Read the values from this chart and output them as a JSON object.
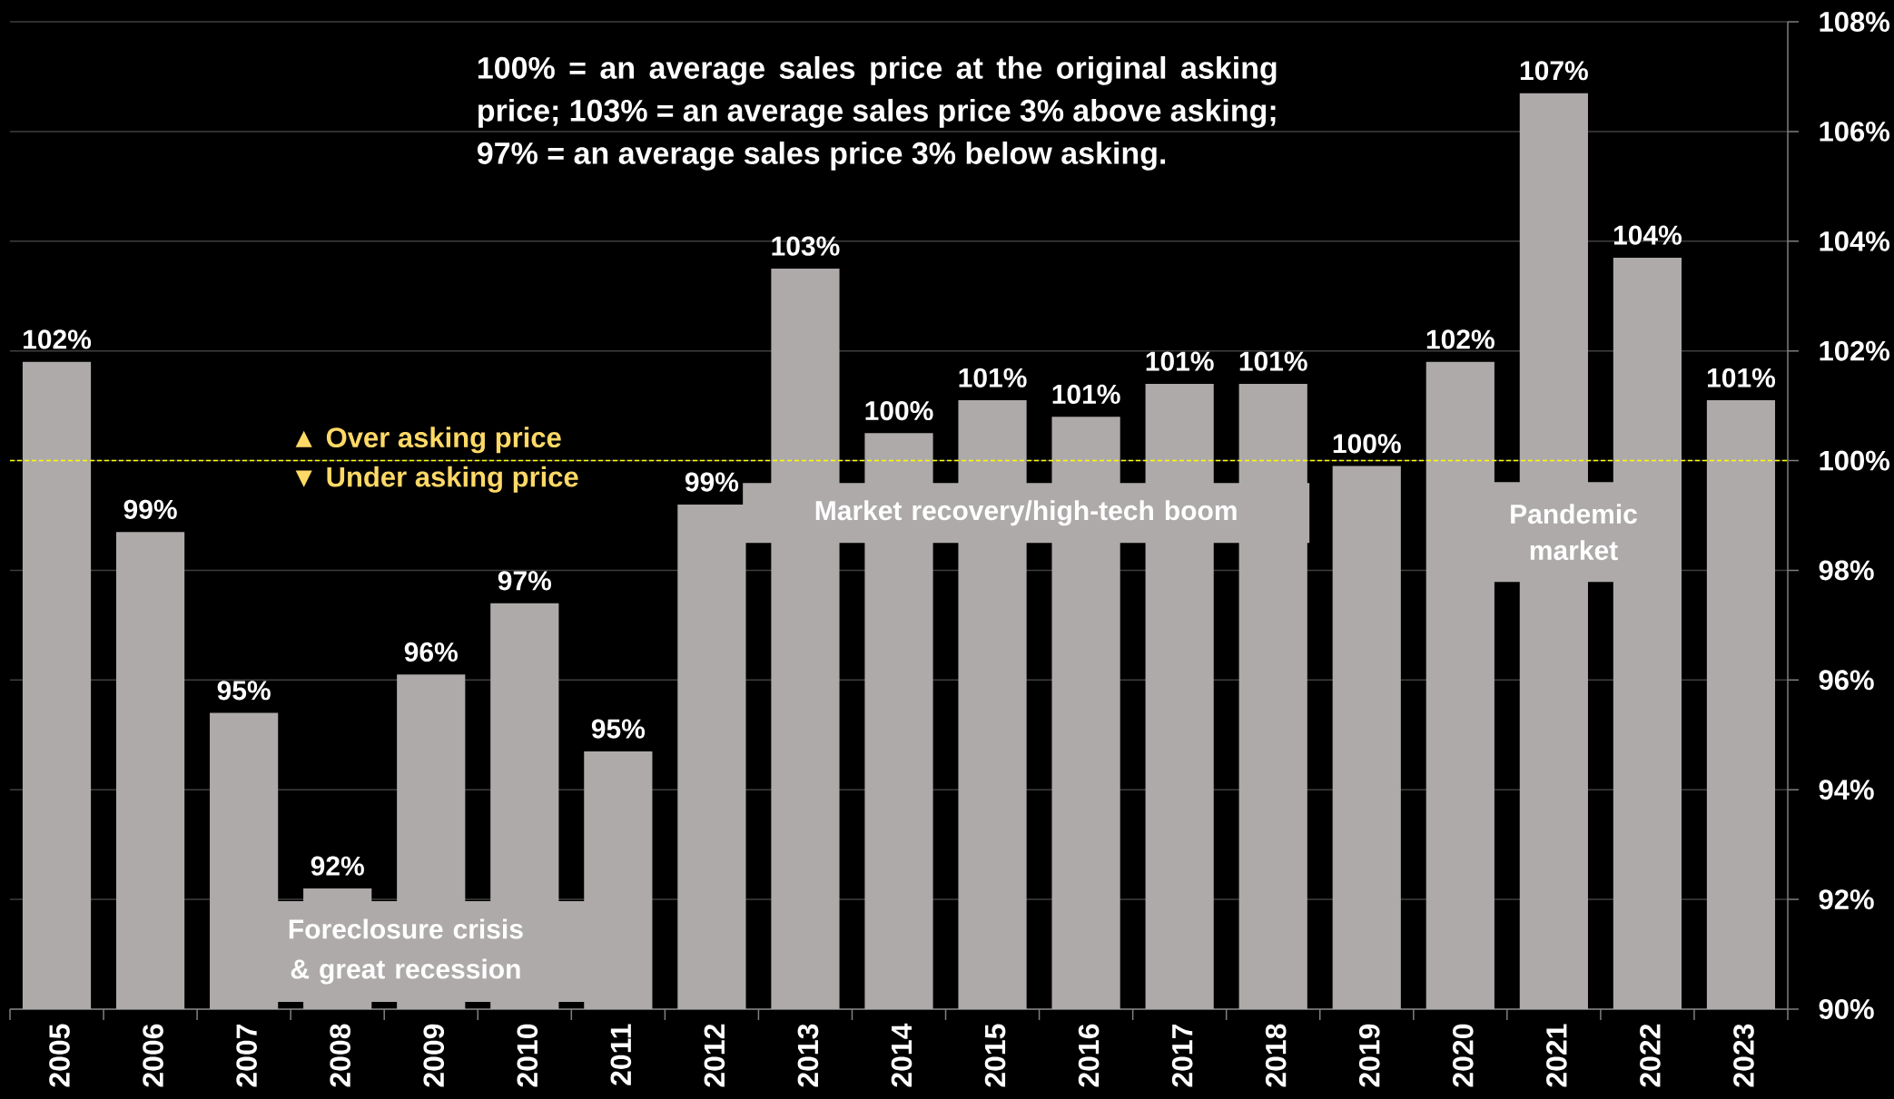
{
  "chart_data": {
    "type": "bar",
    "categories": [
      "2005",
      "2006",
      "2007",
      "2008",
      "2009",
      "2010",
      "2011",
      "2012",
      "2013",
      "2014",
      "2015",
      "2016",
      "2017",
      "2018",
      "2019",
      "2020",
      "2021",
      "2022",
      "2023"
    ],
    "values": [
      101.8,
      98.7,
      95.4,
      92.2,
      96.1,
      97.4,
      94.7,
      99.2,
      103.5,
      100.5,
      101.1,
      100.8,
      101.4,
      101.4,
      99.9,
      101.8,
      106.7,
      103.7,
      101.1
    ],
    "value_labels": [
      "102%",
      "99%",
      "95%",
      "92%",
      "96%",
      "97%",
      "95%",
      "99%",
      "103%",
      "100%",
      "101%",
      "101%",
      "101%",
      "101%",
      "100%",
      "102%",
      "107%",
      "104%",
      "101%"
    ],
    "color": "#aeaaaa",
    "ylim": [
      90,
      108
    ],
    "yticks": [
      {
        "value": 90,
        "label": "90%"
      },
      {
        "value": 92,
        "label": "92%"
      },
      {
        "value": 94,
        "label": "94%"
      },
      {
        "value": 96,
        "label": "96%"
      },
      {
        "value": 98,
        "label": "98%"
      },
      {
        "value": 100,
        "label": "100%"
      },
      {
        "value": 102,
        "label": "102%"
      },
      {
        "value": 104,
        "label": "104%"
      },
      {
        "value": 106,
        "label": "106%"
      },
      {
        "value": 108,
        "label": "108%"
      }
    ],
    "grid": "y",
    "ref_lines": [
      {
        "axis": "y",
        "value": 100,
        "color": "#ffff00",
        "line_style": "dashed"
      }
    ],
    "annotations": [
      "100% = an average sales price at the original asking price; 103% = an average sales price 3% above asking; 97% = an average sales price 3% below asking.",
      {
        "text": "▲ Over asking price",
        "y": 100
      },
      {
        "text": "▼ Under asking price",
        "y": 100
      },
      "Foreclosure crisis & great recession",
      "Market recovery/high-tech boom",
      "Pandemic market"
    ]
  }
}
